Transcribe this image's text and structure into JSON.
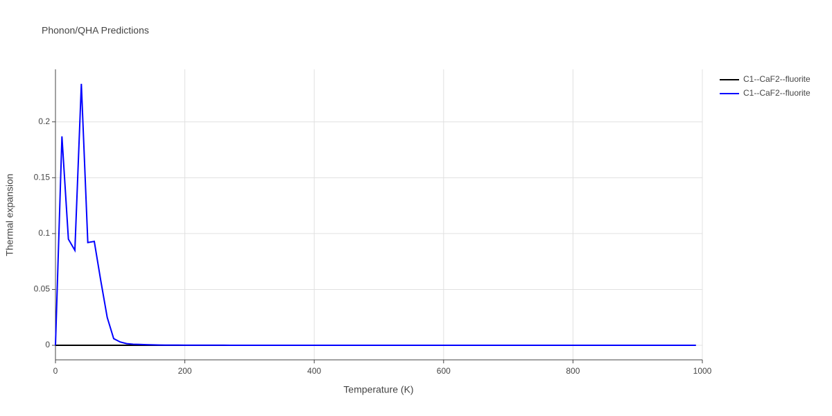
{
  "chart_data": {
    "type": "line",
    "title": "Phonon/QHA Predictions",
    "x_label": "Temperature (K)",
    "y_label": "Thermal expansion",
    "x": [
      0,
      10,
      20,
      30,
      40,
      50,
      60,
      70,
      80,
      90,
      100,
      110,
      120,
      130,
      140,
      150,
      160,
      170,
      180,
      190,
      200,
      210,
      220,
      230,
      240,
      250,
      260,
      270,
      280,
      290,
      300,
      310,
      320,
      330,
      340,
      350,
      360,
      370,
      380,
      390,
      400,
      410,
      420,
      430,
      440,
      450,
      460,
      470,
      480,
      490,
      500,
      510,
      520,
      530,
      540,
      550,
      560,
      570,
      580,
      590,
      600,
      610,
      620,
      630,
      640,
      650,
      660,
      670,
      680,
      690,
      700,
      710,
      720,
      730,
      740,
      750,
      760,
      770,
      780,
      790,
      800,
      810,
      820,
      830,
      840,
      850,
      860,
      870,
      880,
      890,
      900,
      910,
      920,
      930,
      940,
      950,
      960,
      970,
      980,
      990
    ],
    "series": [
      {
        "name": "C1--CaF2--fluorite",
        "color": "#000000",
        "values": [
          0,
          0,
          0,
          0,
          0,
          0,
          0,
          0,
          0,
          0,
          0,
          0,
          0,
          0,
          0,
          0,
          0,
          0,
          0,
          0,
          0,
          0,
          0,
          0,
          0,
          0,
          0,
          0,
          0,
          0,
          0,
          0,
          0,
          0,
          0,
          0,
          0,
          0,
          0,
          0,
          0,
          0,
          0,
          0,
          0,
          0,
          0,
          0,
          0,
          0,
          0,
          0,
          0,
          0,
          0,
          0,
          0,
          0,
          0,
          0,
          0,
          0,
          0,
          0,
          0,
          0,
          0,
          0,
          0,
          0,
          0,
          0,
          0,
          0,
          0,
          0,
          0,
          0,
          0,
          0,
          0,
          0,
          0,
          0,
          0,
          0,
          0,
          0,
          0,
          0,
          0,
          0,
          0,
          0,
          0,
          0,
          0,
          0,
          0,
          0
        ]
      },
      {
        "name": "C1--CaF2--fluorite",
        "color": "#0000ff",
        "values": [
          0,
          0.187,
          0.095,
          0.085,
          0.234,
          0.092,
          0.093,
          0.058,
          0.025,
          0.006,
          0.003,
          0.0015,
          0.001,
          0.0008,
          0.0006,
          0.0004,
          0.0003,
          0.0002,
          0.0002,
          0.0002,
          0.0001,
          0.0001,
          0.0001,
          0.0001,
          0.0001,
          0.0001,
          0.0001,
          0,
          0,
          0,
          0,
          0,
          0,
          0,
          0,
          0,
          0,
          0,
          0,
          0,
          0,
          0,
          0,
          0,
          0,
          0,
          0,
          0,
          0,
          0,
          0,
          0,
          0,
          0,
          0,
          0,
          0,
          0,
          0,
          0,
          0,
          0,
          0,
          0,
          0,
          0,
          0,
          0,
          0,
          0,
          0,
          0,
          0,
          0,
          0,
          0,
          0,
          0,
          0,
          0,
          0,
          0,
          0,
          0,
          0,
          0,
          0,
          0,
          0,
          0,
          0,
          0,
          0,
          0,
          0,
          0,
          0,
          0,
          0,
          0
        ]
      }
    ],
    "xlim": [
      0,
      1000
    ],
    "xticks": [
      0,
      200,
      400,
      600,
      800,
      1000
    ],
    "ylim": [
      -0.013,
      0.247
    ],
    "yticks": [
      0,
      0.05,
      0.1,
      0.15,
      0.2
    ],
    "grid": true,
    "legend": "right"
  }
}
